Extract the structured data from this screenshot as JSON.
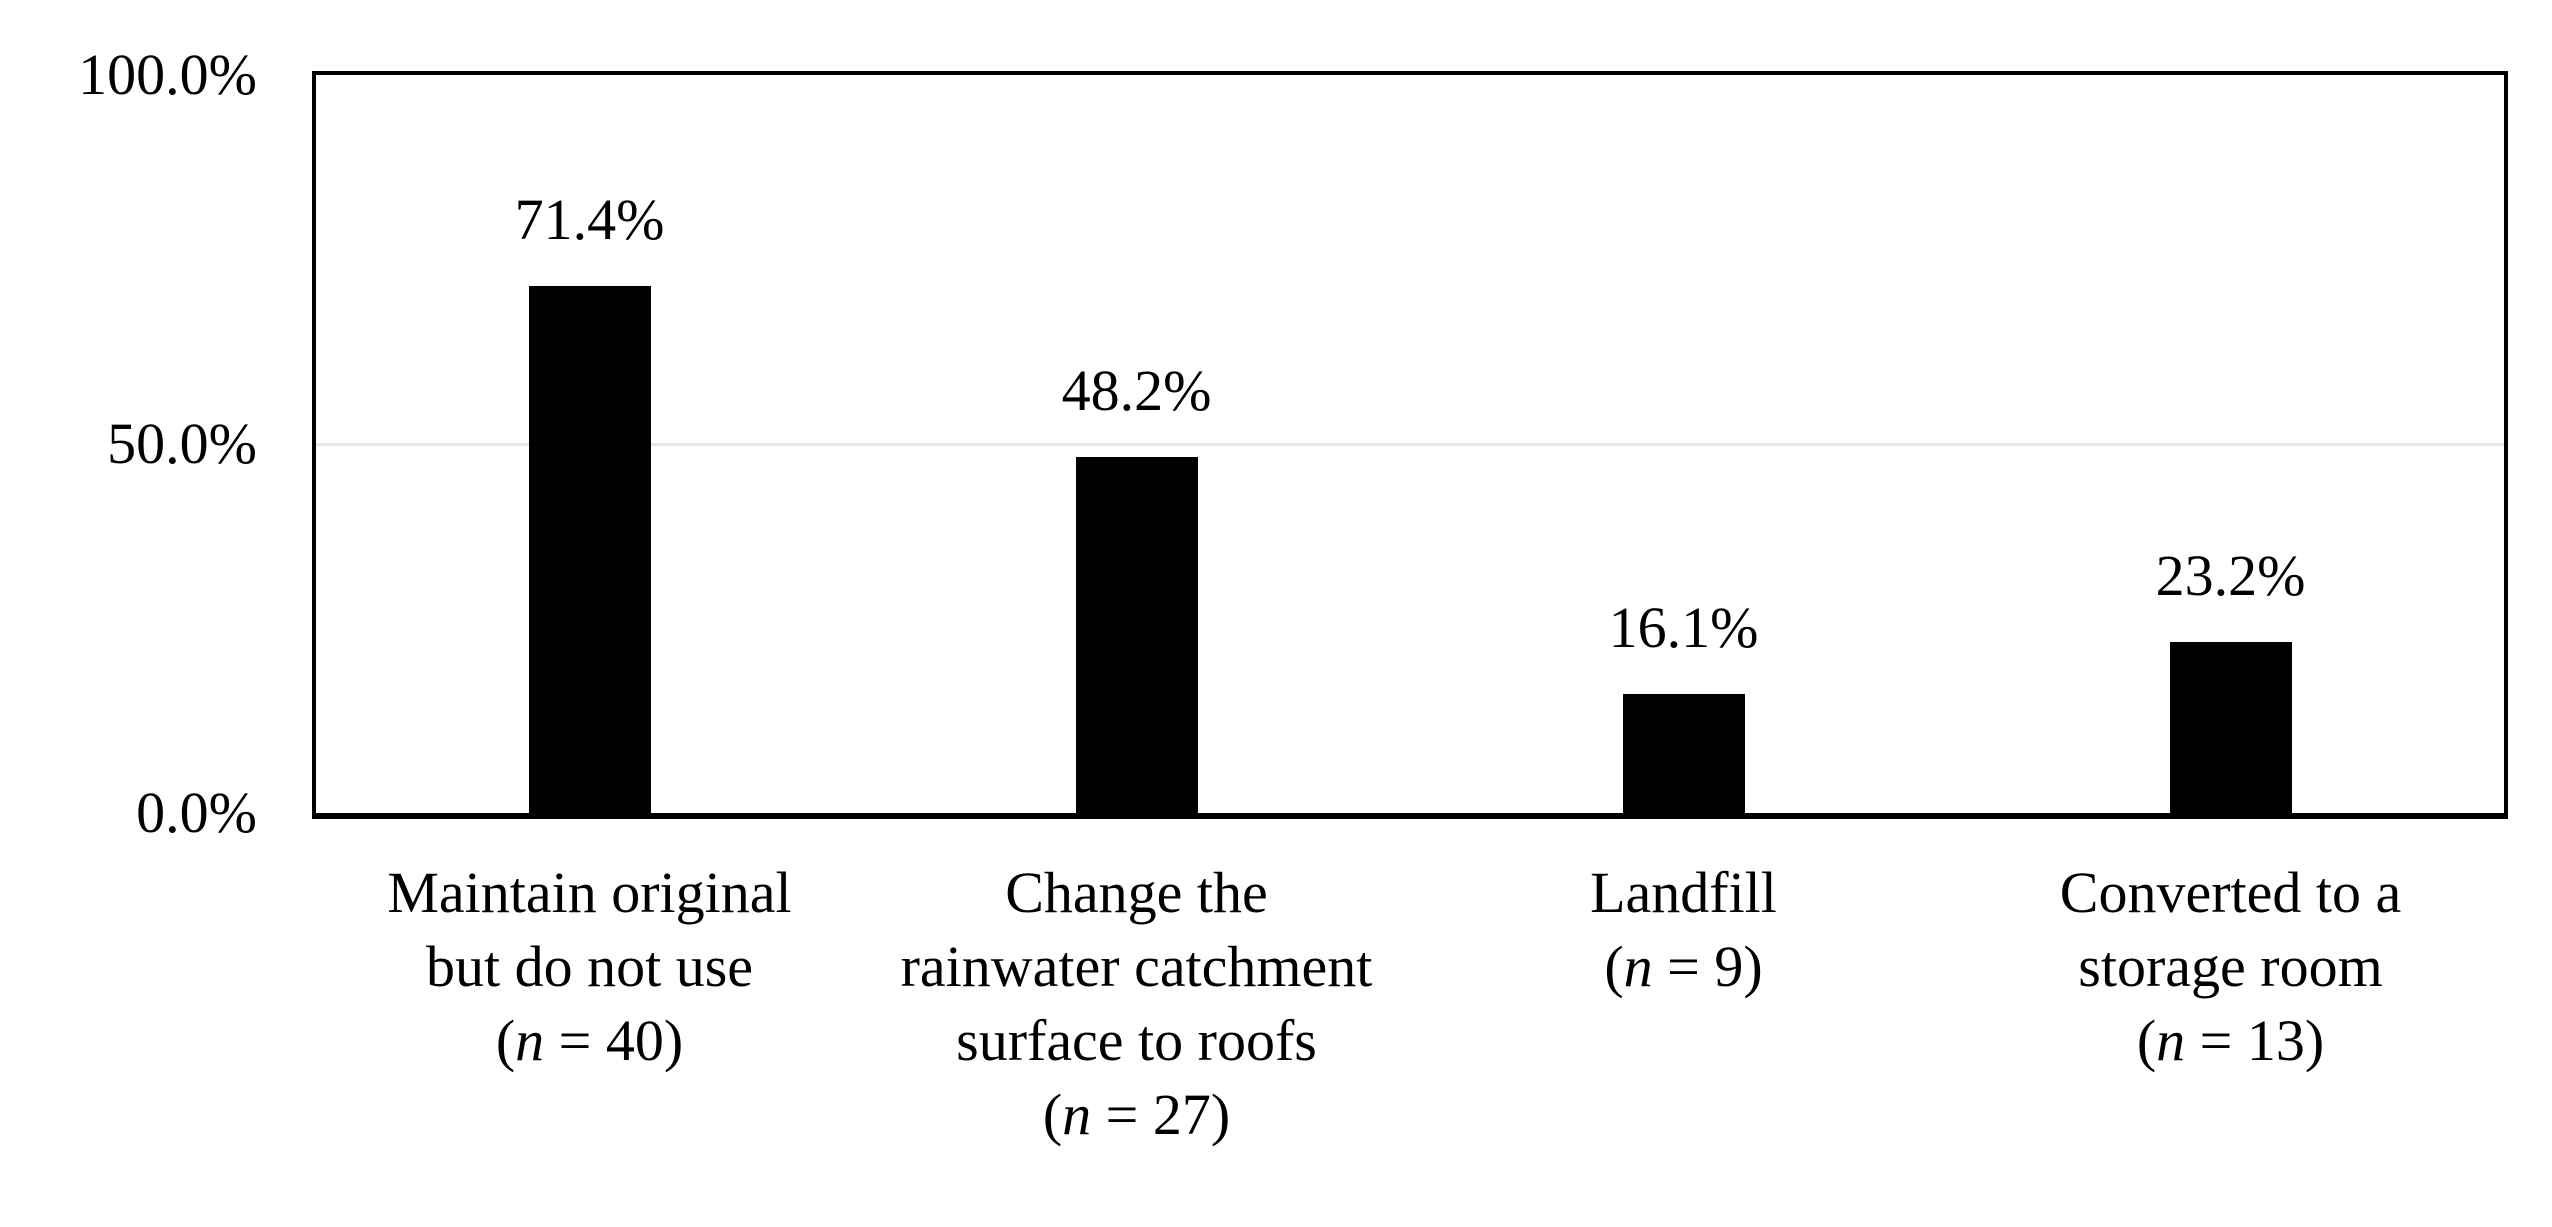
{
  "chart_data": {
    "type": "bar",
    "title": "",
    "xlabel": "",
    "ylabel": "",
    "categories": [
      "Maintain original but do not use (n = 40)",
      "Change the rainwater catchment surface to roofs (n = 27)",
      "Landfill (n = 9)",
      "Converted to a storage room (n = 13)"
    ],
    "category_lines": [
      [
        "Maintain original",
        "but do not use",
        "(n = 40)"
      ],
      [
        "Change the",
        "rainwater catchment",
        "surface to roofs",
        "(n = 27)"
      ],
      [
        "Landfill",
        "(n = 9)"
      ],
      [
        "Converted to a",
        "storage room",
        "(n = 13)"
      ]
    ],
    "sample_sizes": [
      40,
      27,
      9,
      13
    ],
    "values": [
      71.4,
      48.2,
      16.1,
      23.2
    ],
    "value_labels": [
      "71.4%",
      "48.2%",
      "16.1%",
      "23.2%"
    ],
    "ylim": [
      0,
      100
    ],
    "yticks": [
      {
        "value": 100,
        "label": "100.0%"
      },
      {
        "value": 50,
        "label": "50.0%"
      },
      {
        "value": 0,
        "label": "0.0%"
      }
    ],
    "gridline_values": [
      50
    ],
    "legend_position": "none",
    "bar_color": "#000000",
    "gridline_color": "#e7e7e7",
    "axis_color": "#000000",
    "plot_background": "#ffffff"
  }
}
